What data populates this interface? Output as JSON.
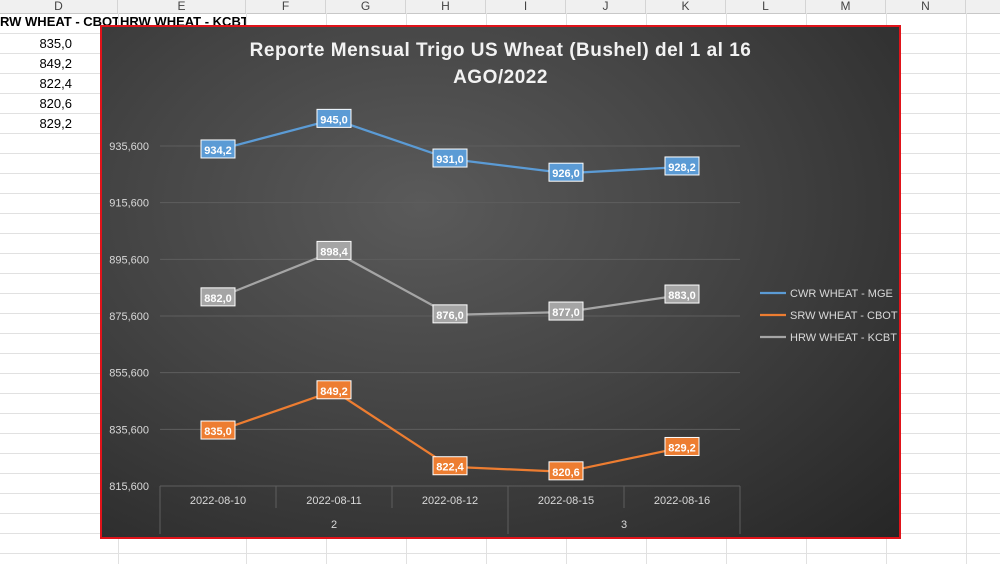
{
  "sheet": {
    "columns": [
      "D",
      "E",
      "F",
      "G",
      "H",
      "I",
      "J",
      "K",
      "L",
      "M",
      "N"
    ],
    "header_cells": [
      "RW WHEAT - CBOT",
      "HRW WHEAT - KCBT"
    ],
    "column_d_values": [
      "835,0",
      "849,2",
      "822,4",
      "820,6",
      "829,2"
    ]
  },
  "chart_data": {
    "type": "line",
    "title_lines": [
      "Reporte Mensual Trigo US Wheat (Bushel) del 1 al 16",
      "AGO/2022"
    ],
    "categories": [
      "2022-08-10",
      "2022-08-11",
      "2022-08-12",
      "2022-08-15",
      "2022-08-16"
    ],
    "group_labels": [
      {
        "label": "2",
        "from": 0,
        "to": 2
      },
      {
        "label": "3",
        "from": 3,
        "to": 4
      }
    ],
    "ylim": [
      815.6,
      955.6
    ],
    "yticks": [
      815.6,
      835.6,
      855.6,
      875.6,
      895.6,
      915.6,
      935.6
    ],
    "ytick_labels": [
      "815,600",
      "835,600",
      "855,600",
      "875,600",
      "895,600",
      "915,600",
      "935,600"
    ],
    "grid": true,
    "legend_position": "right",
    "series": [
      {
        "name": "CWR WHEAT - MGE",
        "color": "#5b9bd5",
        "values": [
          934.2,
          945.0,
          931.0,
          926.0,
          928.2
        ],
        "labels": [
          "934,2",
          "945,0",
          "931,0",
          "926,0",
          "928,2"
        ]
      },
      {
        "name": "SRW WHEAT - CBOT",
        "color": "#ed7d31",
        "values": [
          835.0,
          849.2,
          822.4,
          820.6,
          829.2
        ],
        "labels": [
          "835,0",
          "849,2",
          "822,4",
          "820,6",
          "829,2"
        ]
      },
      {
        "name": "HRW WHEAT - KCBT",
        "color": "#a5a5a5",
        "values": [
          882.0,
          898.4,
          876.0,
          877.0,
          883.0
        ],
        "labels": [
          "882,0",
          "898,4",
          "876,0",
          "877,0",
          "883,0"
        ]
      }
    ]
  }
}
